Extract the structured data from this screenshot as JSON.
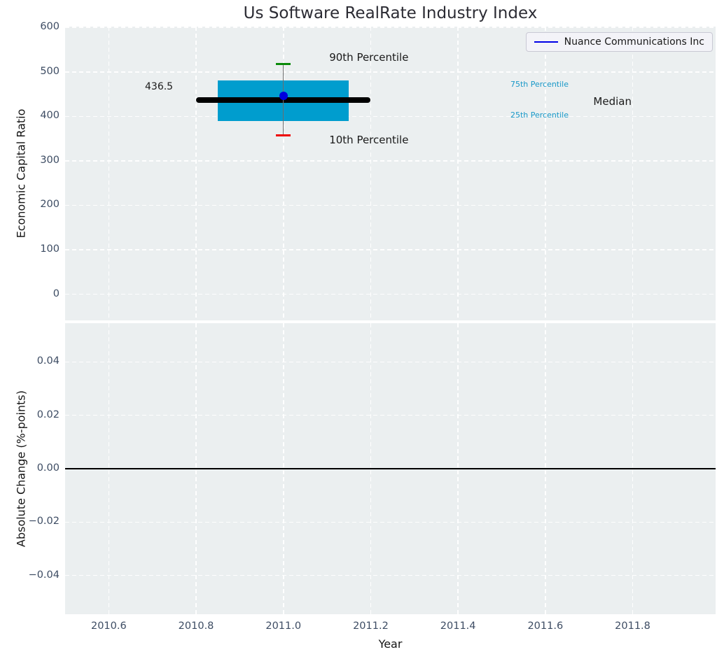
{
  "title": "Us Software RealRate Industry Index",
  "legend": {
    "label": "Nuance Communications Inc"
  },
  "axes": {
    "top": {
      "ylabel": "Economic Capital Ratio"
    },
    "bottom": {
      "ylabel": "Absolute Change (%-points)",
      "xlabel": "Year"
    }
  },
  "colors": {
    "figure_bg": "#ffffff",
    "plot_bg": "#ebeff0",
    "grid": "#ffffff",
    "tick_label": "#3d4c63",
    "axis_label": "#141414",
    "title": "#2c2c34",
    "box_fill": "#009dce",
    "median_line": "#000000",
    "whisker_line": "#6e6e6e",
    "p90_cap": "#0a8a0a",
    "p10_cap": "#ee0000",
    "company_dot": "#0000dd",
    "legend_line": "#0000e6",
    "percentile_label": "#1898c8",
    "annotation_text": "#1a1a1a",
    "zero_line": "#000000"
  },
  "chart_data": [
    {
      "type": "boxplot",
      "panel": "top",
      "title": "Us Software RealRate Industry Index",
      "ylabel": "Economic Capital Ratio",
      "xlim": [
        2010.5,
        2011.99
      ],
      "ylim": [
        -59,
        602
      ],
      "grid": true,
      "legend_position": "upper right",
      "xticks": [
        {
          "v": 2010.6,
          "label": "2010.6"
        },
        {
          "v": 2010.8,
          "label": "2010.8"
        },
        {
          "v": 2011.0,
          "label": "2011.0"
        },
        {
          "v": 2011.2,
          "label": "2011.2"
        },
        {
          "v": 2011.4,
          "label": "2011.4"
        },
        {
          "v": 2011.6,
          "label": "2011.6"
        },
        {
          "v": 2011.8,
          "label": "2011.8"
        }
      ],
      "show_xtick_labels": false,
      "yticks": [
        {
          "v": 0,
          "label": "0"
        },
        {
          "v": 100,
          "label": "100"
        },
        {
          "v": 200,
          "label": "200"
        },
        {
          "v": 300,
          "label": "300"
        },
        {
          "v": 400,
          "label": "400"
        },
        {
          "v": 500,
          "label": "500"
        },
        {
          "v": 600,
          "label": "600"
        }
      ],
      "box": {
        "x_center": 2011.0,
        "year": 2011,
        "p10": 357,
        "p25": 390,
        "median": 436.5,
        "p75": 481,
        "p90": 518,
        "box_x_range": [
          2010.85,
          2011.15
        ],
        "median_x_range": [
          2010.8,
          2011.2
        ],
        "cap_half_width": 0.017,
        "company": {
          "name": "Nuance Communications Inc",
          "x": 2011.0,
          "y": 446
        }
      },
      "annotations": [
        {
          "id": "median-value",
          "text": "436.5",
          "x": 2010.715,
          "y": 467,
          "align": "center",
          "size": 14,
          "color_key": "annotation_text"
        },
        {
          "id": "p90-label",
          "text": "90th Percentile",
          "x": 2011.105,
          "y": 531,
          "align": "left",
          "size": 15,
          "color_key": "annotation_text"
        },
        {
          "id": "p10-label",
          "text": "10th Percentile",
          "x": 2011.105,
          "y": 346,
          "align": "left",
          "size": 15,
          "color_key": "annotation_text"
        },
        {
          "id": "p75-label",
          "text": "75th Percentile",
          "x": 2011.52,
          "y": 470,
          "align": "left",
          "size": 11,
          "color_key": "percentile_label"
        },
        {
          "id": "p25-label",
          "text": "25th Percentile",
          "x": 2011.52,
          "y": 401,
          "align": "left",
          "size": 11,
          "color_key": "percentile_label"
        },
        {
          "id": "median-label",
          "text": "Median",
          "x": 2011.71,
          "y": 433,
          "align": "left",
          "size": 15,
          "color_key": "annotation_text"
        }
      ]
    },
    {
      "type": "line",
      "panel": "bottom",
      "ylabel": "Absolute Change (%-points)",
      "xlabel": "Year",
      "xlim": [
        2010.5,
        2011.99
      ],
      "ylim": [
        -0.0545,
        0.0545
      ],
      "grid": true,
      "xticks": [
        {
          "v": 2010.6,
          "label": "2010.6"
        },
        {
          "v": 2010.8,
          "label": "2010.8"
        },
        {
          "v": 2011.0,
          "label": "2011.0"
        },
        {
          "v": 2011.2,
          "label": "2011.2"
        },
        {
          "v": 2011.4,
          "label": "2011.4"
        },
        {
          "v": 2011.6,
          "label": "2011.6"
        },
        {
          "v": 2011.8,
          "label": "2011.8"
        }
      ],
      "show_xtick_labels": true,
      "yticks": [
        {
          "v": 0.04,
          "label": "0.04"
        },
        {
          "v": 0.02,
          "label": "0.02"
        },
        {
          "v": 0.0,
          "label": "0.00"
        },
        {
          "v": -0.02,
          "label": "−0.02"
        },
        {
          "v": -0.04,
          "label": "−0.04"
        }
      ],
      "zero_line": 0,
      "series": []
    }
  ]
}
